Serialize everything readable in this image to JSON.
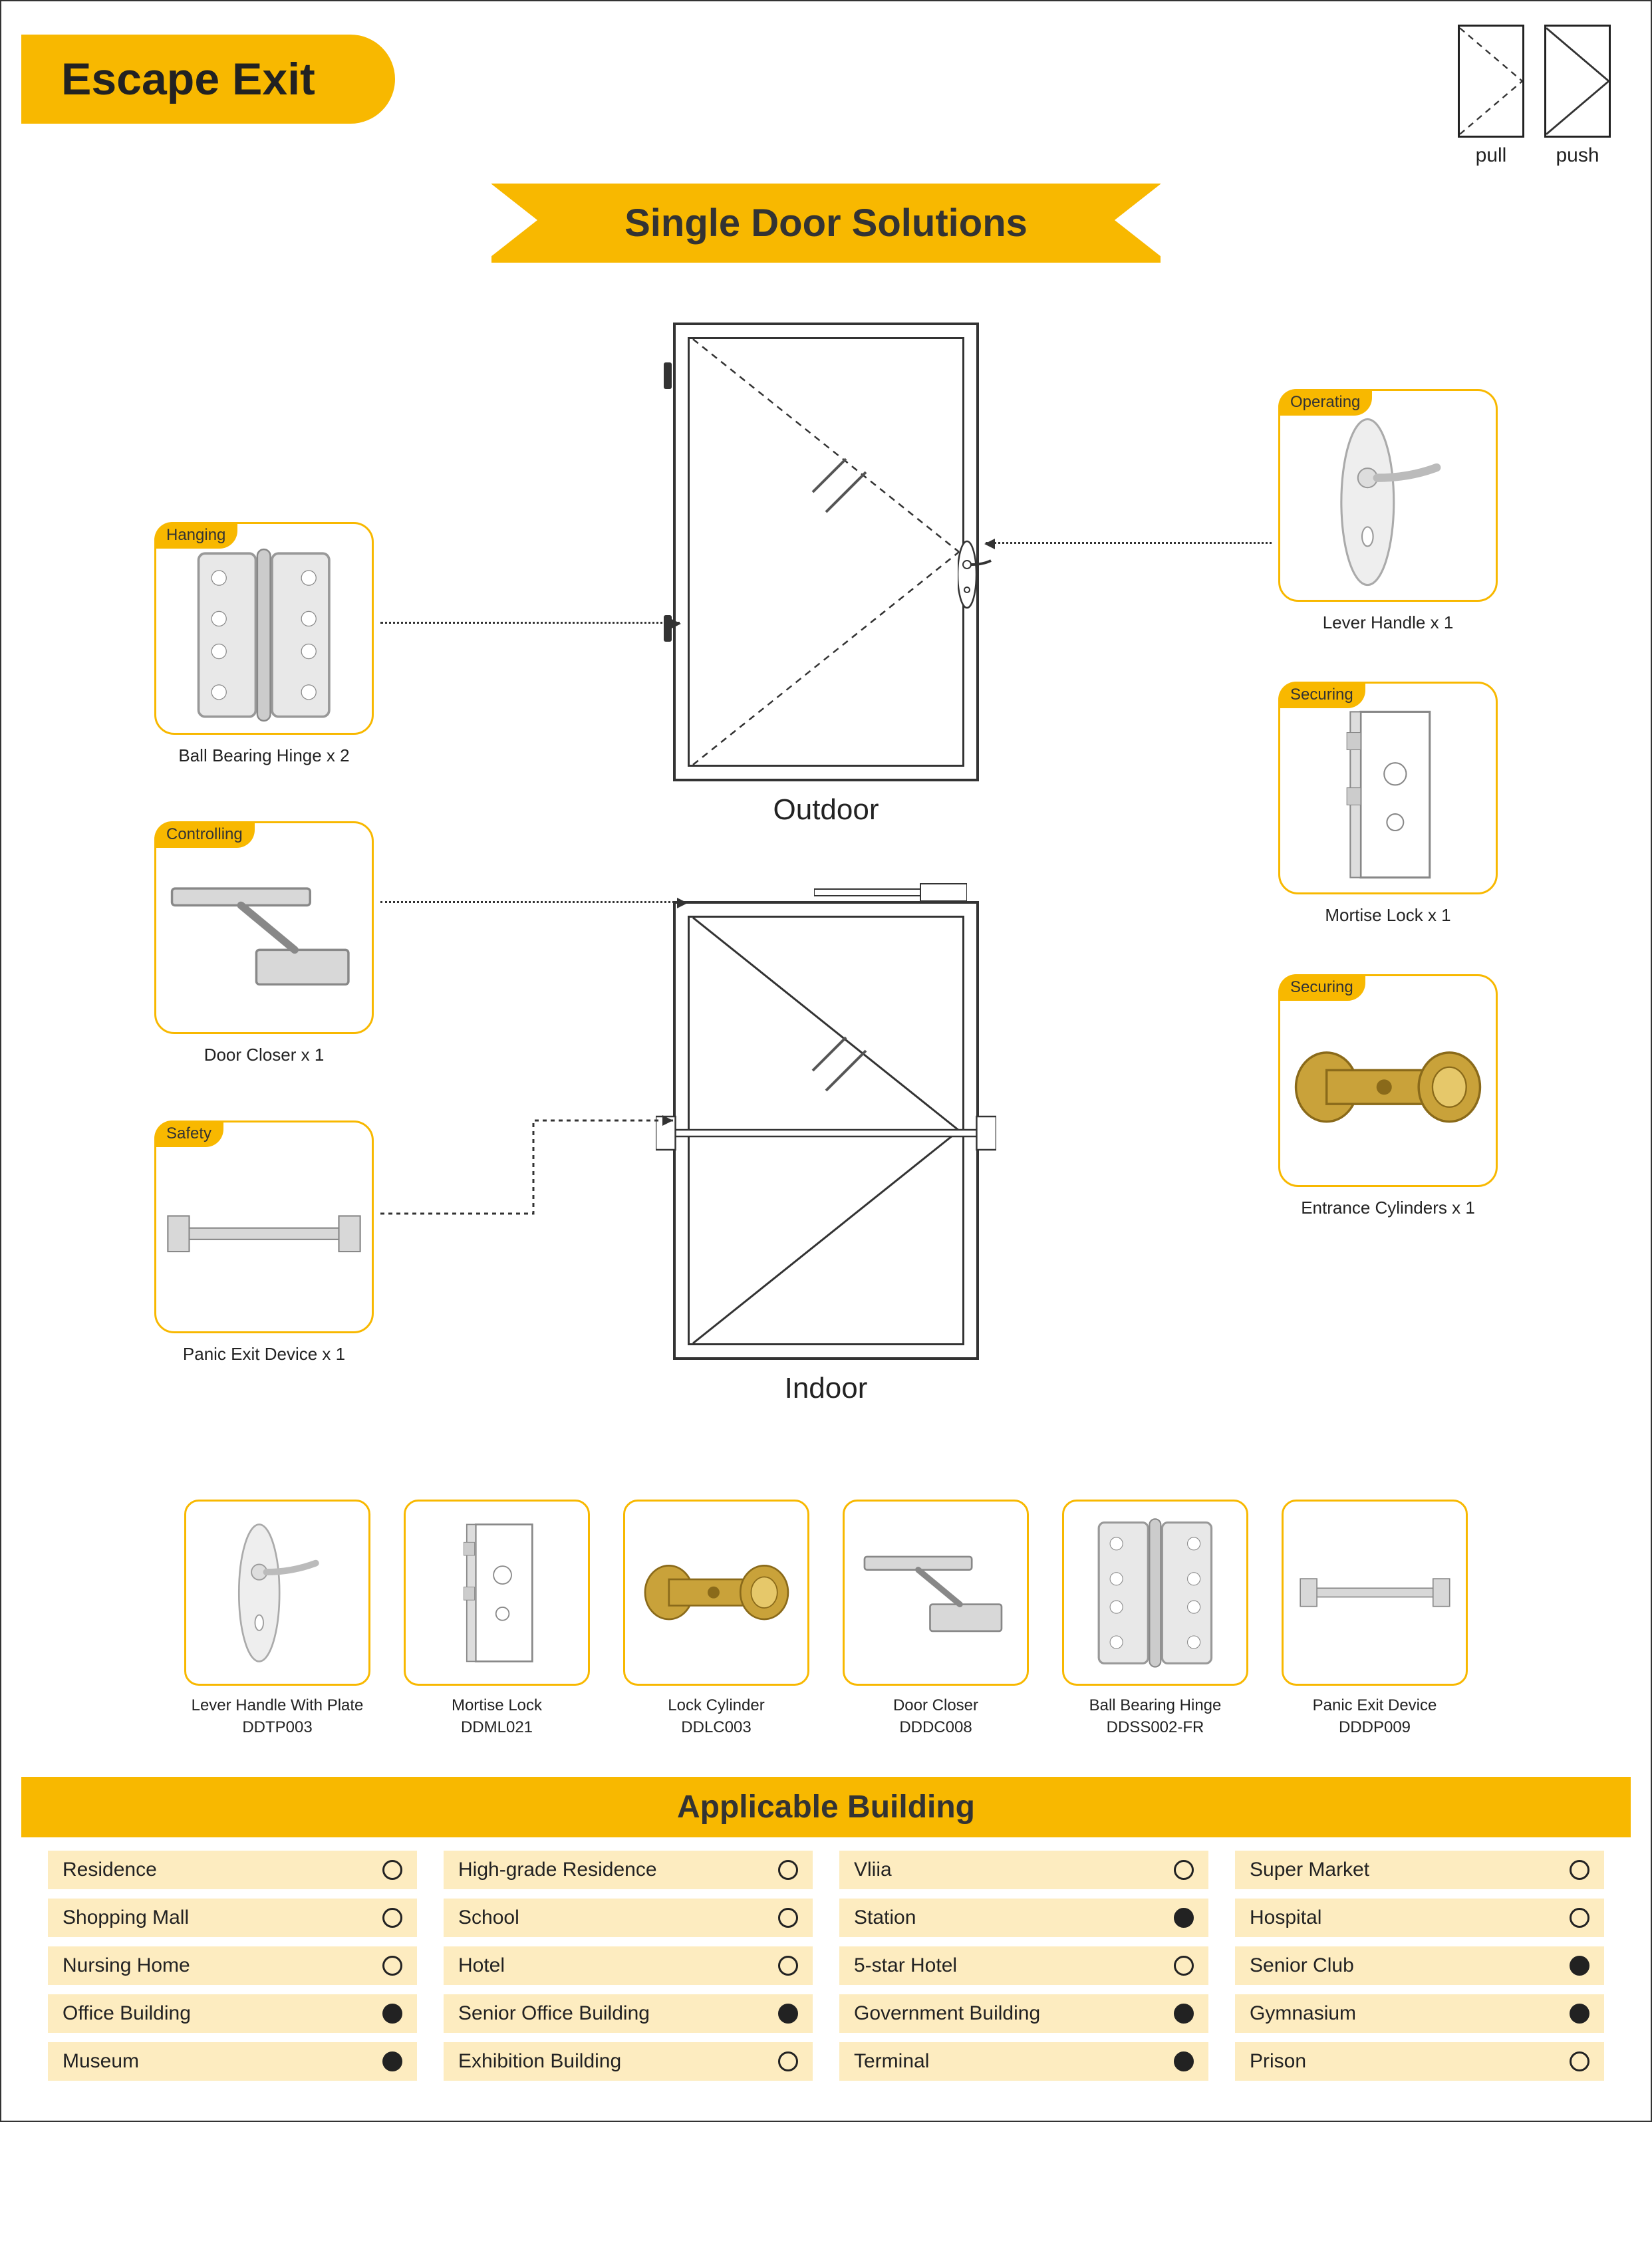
{
  "title": "Escape Exit",
  "banner": "Single Door Solutions",
  "doorIcons": {
    "pull": "pull",
    "push": "push"
  },
  "doors": {
    "outdoor": "Outdoor",
    "indoor": "Indoor"
  },
  "colors": {
    "accent": "#f8b800",
    "accentLight": "#fdecc0",
    "stroke": "#333333",
    "metal": "#d8d8d8",
    "brass": "#c9a23a"
  },
  "components": {
    "hanging": {
      "tag": "Hanging",
      "caption": "Ball Bearing Hinge x 2"
    },
    "controlling": {
      "tag": "Controlling",
      "caption": "Door Closer x 1"
    },
    "safety": {
      "tag": "Safety",
      "caption": "Panic Exit Device x 1"
    },
    "operating": {
      "tag": "Operating",
      "caption": "Lever Handle x 1"
    },
    "securing1": {
      "tag": "Securing",
      "caption": "Mortise Lock x 1"
    },
    "securing2": {
      "tag": "Securing",
      "caption": "Entrance Cylinders x 1"
    }
  },
  "products": [
    {
      "name": "Lever Handle With Plate",
      "code": "DDTP003",
      "icon": "lever"
    },
    {
      "name": "Mortise Lock",
      "code": "DDML021",
      "icon": "mortise"
    },
    {
      "name": "Lock Cylinder",
      "code": "DDLC003",
      "icon": "cylinder"
    },
    {
      "name": "Door Closer",
      "code": "DDDC008",
      "icon": "closer"
    },
    {
      "name": "Ball Bearing Hinge",
      "code": "DDSS002-FR",
      "icon": "hinge"
    },
    {
      "name": "Panic Exit Device",
      "code": "DDDP009",
      "icon": "panic"
    }
  ],
  "applicableHeader": "Applicable Building",
  "applicable": [
    {
      "label": "Residence",
      "filled": false
    },
    {
      "label": "High-grade Residence",
      "filled": false
    },
    {
      "label": "Vliia",
      "filled": false
    },
    {
      "label": "Super Market",
      "filled": false
    },
    {
      "label": "Shopping Mall",
      "filled": false
    },
    {
      "label": "School",
      "filled": false
    },
    {
      "label": "Station",
      "filled": true
    },
    {
      "label": "Hospital",
      "filled": false
    },
    {
      "label": "Nursing Home",
      "filled": false
    },
    {
      "label": "Hotel",
      "filled": false
    },
    {
      "label": "5-star Hotel",
      "filled": false
    },
    {
      "label": "Senior Club",
      "filled": true
    },
    {
      "label": "Office Building",
      "filled": true
    },
    {
      "label": "Senior Office Building",
      "filled": true
    },
    {
      "label": "Government Building",
      "filled": true
    },
    {
      "label": "Gymnasium",
      "filled": true
    },
    {
      "label": "Museum",
      "filled": true
    },
    {
      "label": "Exhibition Building",
      "filled": false
    },
    {
      "label": "Terminal",
      "filled": true
    },
    {
      "label": "Prison",
      "filled": false
    }
  ]
}
